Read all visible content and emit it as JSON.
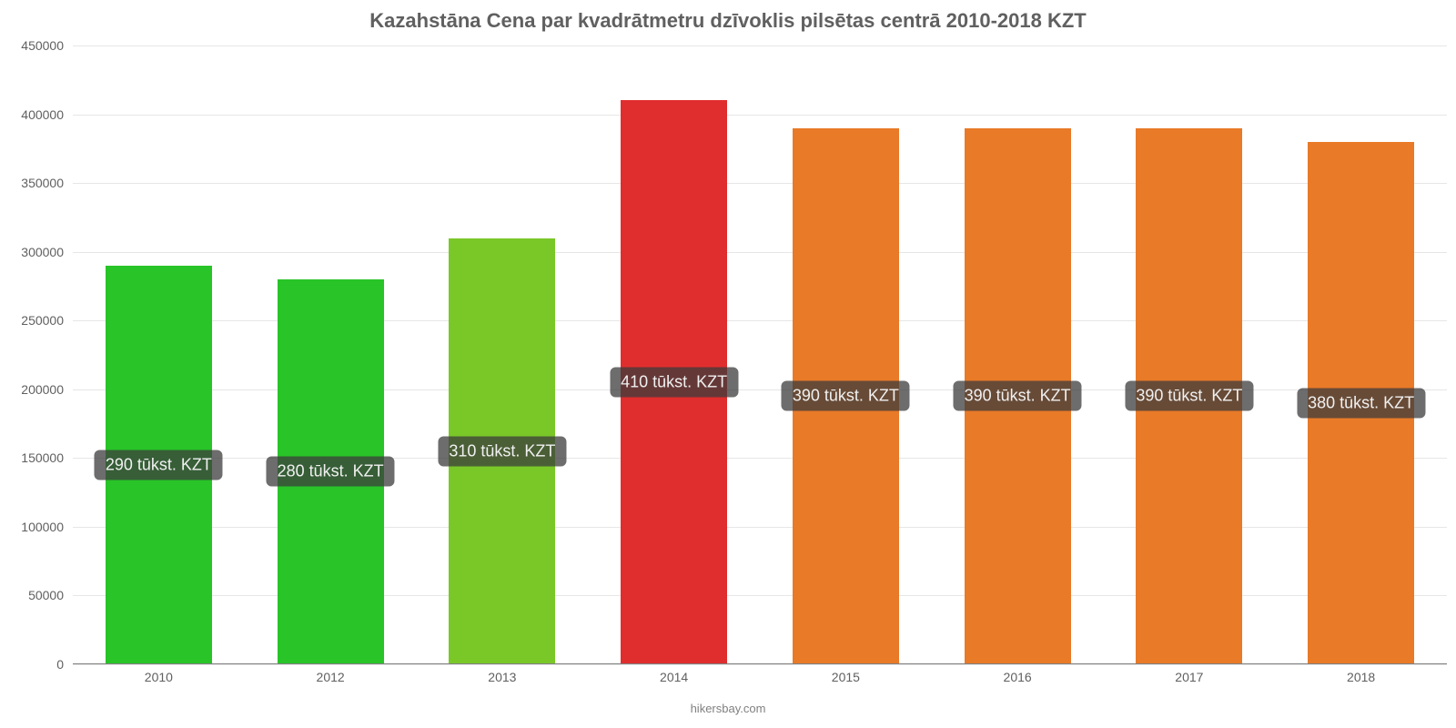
{
  "chart": {
    "type": "bar",
    "title": "Kazahstāna Cena par kvadrātmetru dzīvoklis pilsētas centrā 2010-2018 KZT",
    "title_fontsize": 22,
    "title_color": "#606060",
    "background_color": "#ffffff",
    "grid_color": "#e6e6e6",
    "baseline_color": "#808080",
    "axis_label_color": "#606060",
    "axis_label_fontsize": 14,
    "ylim": [
      0,
      450000
    ],
    "ytick_step": 50000,
    "yticks": [
      0,
      50000,
      100000,
      150000,
      200000,
      250000,
      300000,
      350000,
      400000,
      450000
    ],
    "bar_width_ratio": 0.62,
    "categories": [
      "2010",
      "2012",
      "2013",
      "2014",
      "2015",
      "2016",
      "2017",
      "2018"
    ],
    "values": [
      290000,
      280000,
      310000,
      410000,
      390000,
      390000,
      390000,
      380000
    ],
    "display_labels": [
      "290 tūkst. KZT",
      "280 tūkst. KZT",
      "310 tūkst. KZT",
      "410 tūkst. KZT",
      "390 tūkst. KZT",
      "390 tūkst. KZT",
      "390 tūkst. KZT",
      "380 tūkst. KZT"
    ],
    "bar_colors": [
      "#28c428",
      "#28c428",
      "#7ac828",
      "#e02e2e",
      "#e87a28",
      "#e87a28",
      "#e87a28",
      "#e87a28"
    ],
    "label_box": {
      "bg": "rgba(60,60,60,0.75)",
      "color": "#f0f0f0",
      "fontsize": 18,
      "radius": 6
    },
    "attribution": "hikersbay.com",
    "attribution_color": "#808080",
    "attribution_fontsize": 13
  }
}
